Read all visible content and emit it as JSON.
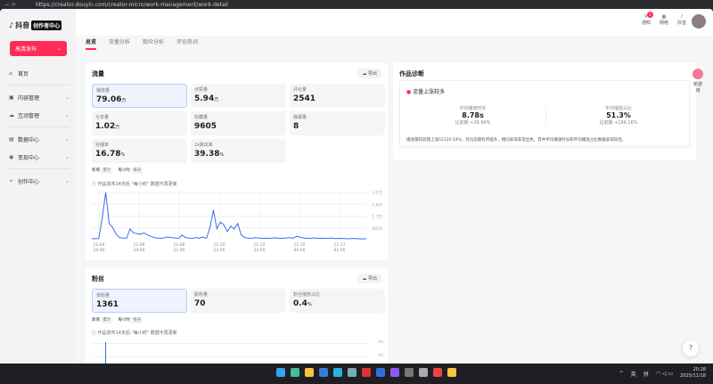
{
  "browser": {
    "url": "https://creator.douyin.com/creator-micro/work-management/work-detail"
  },
  "sidebar": {
    "logo": "抖音",
    "logo_badge": "创作者中心",
    "publish": "高清发布",
    "items": [
      {
        "icon": "home-icon",
        "label": "首页"
      },
      {
        "icon": "content-icon",
        "label": "内容管理"
      },
      {
        "icon": "interaction-icon",
        "label": "互动管理"
      },
      {
        "icon": "data-icon",
        "label": "数据中心"
      },
      {
        "icon": "monetize-icon",
        "label": "变现中心"
      },
      {
        "icon": "create-icon",
        "label": "创作中心"
      }
    ]
  },
  "topbar": {
    "icons": [
      {
        "label": "通知",
        "badge": "1"
      },
      {
        "label": "网络"
      },
      {
        "label": "抖音"
      }
    ]
  },
  "tabs": [
    "总览",
    "流量分析",
    "观众分析",
    "评论热词"
  ],
  "traffic": {
    "title": "流量",
    "export": "导出",
    "metrics": [
      {
        "label": "播放量",
        "value": "79.06",
        "unit": "万"
      },
      {
        "label": "点赞量",
        "value": "5.94",
        "unit": "万"
      },
      {
        "label": "评论量",
        "value": "2541",
        "unit": ""
      },
      {
        "label": "分享量",
        "value": "1.02",
        "unit": "万"
      },
      {
        "label": "收藏量",
        "value": "9605",
        "unit": ""
      },
      {
        "label": "弹幕量",
        "value": "8",
        "unit": ""
      },
      {
        "label": "完播率",
        "value": "16.78",
        "unit": "%"
      },
      {
        "label": "2s跳出率",
        "value": "39.38",
        "unit": "%"
      }
    ],
    "ctrl1": "新增",
    "ctrl1b": "累计",
    "ctrl2": "每小时",
    "ctrl2b": "每天",
    "note": "作品发布14天后 \"每小时\" 数据不再更新"
  },
  "chart_data": {
    "type": "line",
    "x_ticks": [
      "11-04 19:00",
      "11-06 20:00",
      "11-08 21:00",
      "11-10 22:00",
      "11-12 23:00",
      "11-15 00:00",
      "11-17 01:00"
    ],
    "y_ticks": [
      "8629",
      "1.7万",
      "2.6万",
      "3.5万"
    ],
    "ylim": [
      0,
      35000
    ],
    "grid": true,
    "values": [
      800,
      700,
      900,
      16000,
      35000,
      12000,
      9000,
      4000,
      1500,
      1200,
      1000,
      8000,
      5000,
      4500,
      4000,
      5000,
      3500,
      2500,
      1500,
      1200,
      1000,
      1500,
      2000,
      1500,
      1200,
      1000,
      3500,
      1500,
      1200,
      1000,
      1500,
      1200,
      2000,
      1000,
      9000,
      22000,
      8000,
      13000,
      11000,
      6000,
      10000,
      8000,
      12000,
      3500,
      1500,
      1200,
      1000,
      1500,
      1200,
      1000,
      1100,
      1000,
      1200,
      1300,
      1000,
      1100,
      1200,
      1500,
      1100,
      2500,
      1800,
      1200,
      1100,
      1000,
      1300,
      900,
      1100,
      1000,
      900,
      1200,
      800,
      900,
      1000,
      800,
      700,
      900,
      800,
      700,
      600,
      700
    ]
  },
  "diagnosis": {
    "title": "作品诊断",
    "tag": "流量上涨较多",
    "stats": [
      {
        "label": "平均播放时长",
        "value": "8.78s",
        "compare": "比前期 +26.96%"
      },
      {
        "label": "平均播放占比",
        "value": "51.3%",
        "compare": "比前期 +186.16%"
      }
    ],
    "summary": "播放量较前期上涨52120.54%，对比前期有所提升，相同表现非常出色，其中平均播放时长和平均播放占比数据表现较佳。"
  },
  "fans": {
    "title": "粉丝",
    "export": "导出",
    "metrics": [
      {
        "label": "涨粉量",
        "value": "1361",
        "unit": ""
      },
      {
        "label": "脱粉量",
        "value": "70",
        "unit": ""
      },
      {
        "label": "粉丝播放占比",
        "value": "0.4",
        "unit": "%"
      }
    ],
    "ctrl1": "新增",
    "ctrl1b": "累计",
    "ctrl2": "每小时",
    "ctrl2b": "每天",
    "note": "作品发布14天后 \"每小时\" 数据不再更新",
    "y_ticks": [
      "56",
      "42"
    ]
  },
  "float": {
    "label": "新建城"
  },
  "taskbar": {
    "tray": [
      "^",
      "英",
      "拼"
    ],
    "time": "20:28",
    "date": "2025/11/18"
  }
}
